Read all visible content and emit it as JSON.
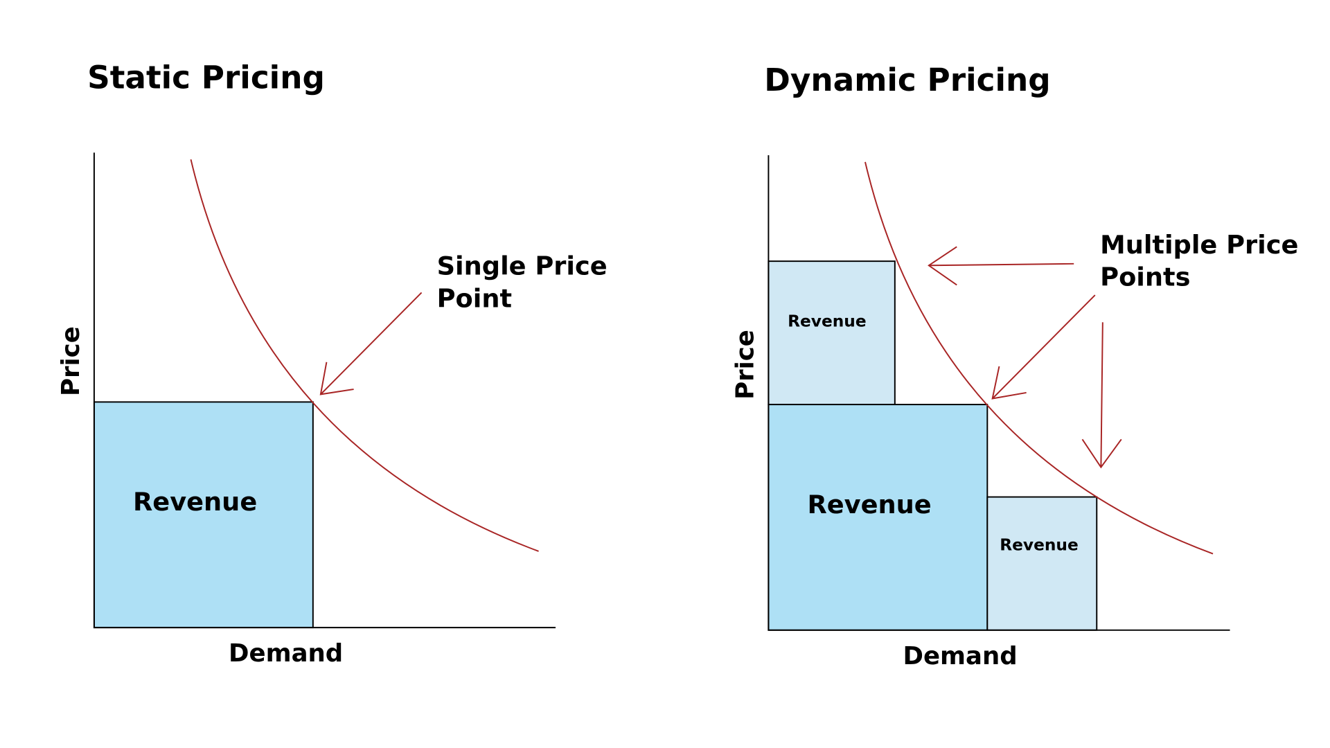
{
  "colors": {
    "revenue_main": "#aee0f5",
    "revenue_secondary": "#d0e8f4",
    "curve": "#a82424",
    "axis": "#000000"
  },
  "static_panel": {
    "title": "Static Pricing",
    "y_label": "Price",
    "x_label": "Demand",
    "revenue_label": "Revenue",
    "annotation_line1": "Single Price",
    "annotation_line2": "Point"
  },
  "dynamic_panel": {
    "title": "Dynamic Pricing",
    "y_label": "Price",
    "x_label": "Demand",
    "revenue_high_label": "Revenue",
    "revenue_main_label": "Revenue",
    "revenue_low_label": "Revenue",
    "annotation_line1": "Multiple Price",
    "annotation_line2": "Points"
  }
}
